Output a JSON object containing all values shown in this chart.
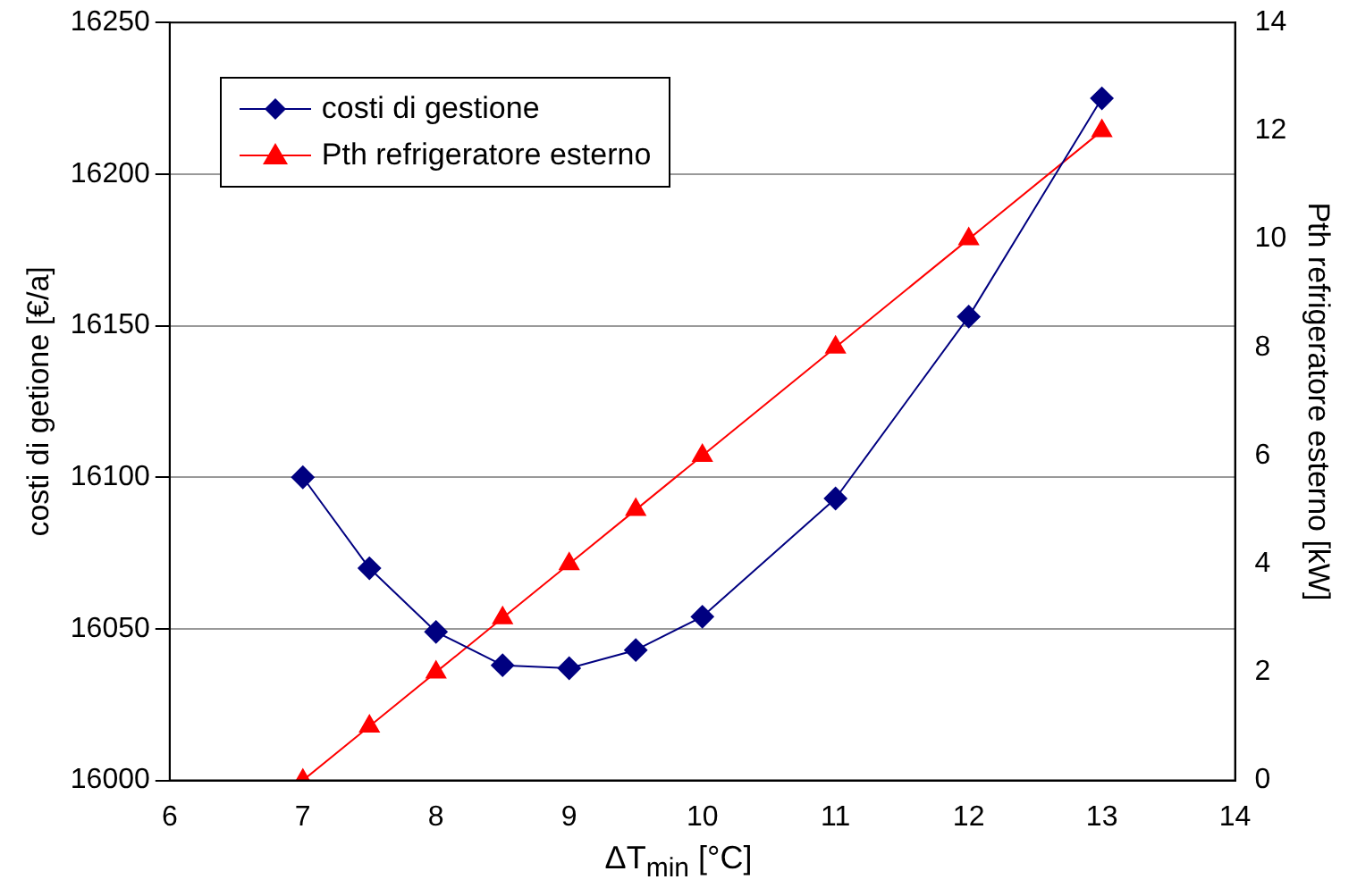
{
  "chart_data": {
    "type": "line",
    "xlabel": "ΔT$_{min}$ [°C]",
    "ylabel": "costi di getione [€/a]",
    "y2label": "Pth refrigeratore esterno [kW]",
    "x": [
      7,
      7.5,
      8,
      8.5,
      9,
      9.5,
      10,
      11,
      12,
      13
    ],
    "series": [
      {
        "name": "costi di gestione",
        "color": "#000080",
        "marker": "diamond",
        "values": [
          16100,
          16070,
          16049,
          16038,
          16037,
          16043,
          16054,
          16093,
          16153,
          16225
        ]
      },
      {
        "name": "Pth refrigeratore esterno",
        "color": "#ff0000",
        "marker": "triangle",
        "axis": "y2",
        "values": [
          0,
          1,
          2,
          3,
          4,
          5,
          6,
          8,
          10,
          12
        ]
      }
    ],
    "xlim": [
      6,
      14
    ],
    "xticks": [
      6,
      7,
      8,
      9,
      10,
      11,
      12,
      13,
      14
    ],
    "ylim": [
      16000,
      16250
    ],
    "yticks": [
      16000,
      16050,
      16100,
      16150,
      16200,
      16250
    ],
    "y2lim": [
      0,
      14
    ],
    "y2ticks": [
      0,
      2,
      4,
      6,
      8,
      10,
      12,
      14
    ],
    "grid": "y",
    "legend": "top left",
    "line_style": "solid"
  }
}
